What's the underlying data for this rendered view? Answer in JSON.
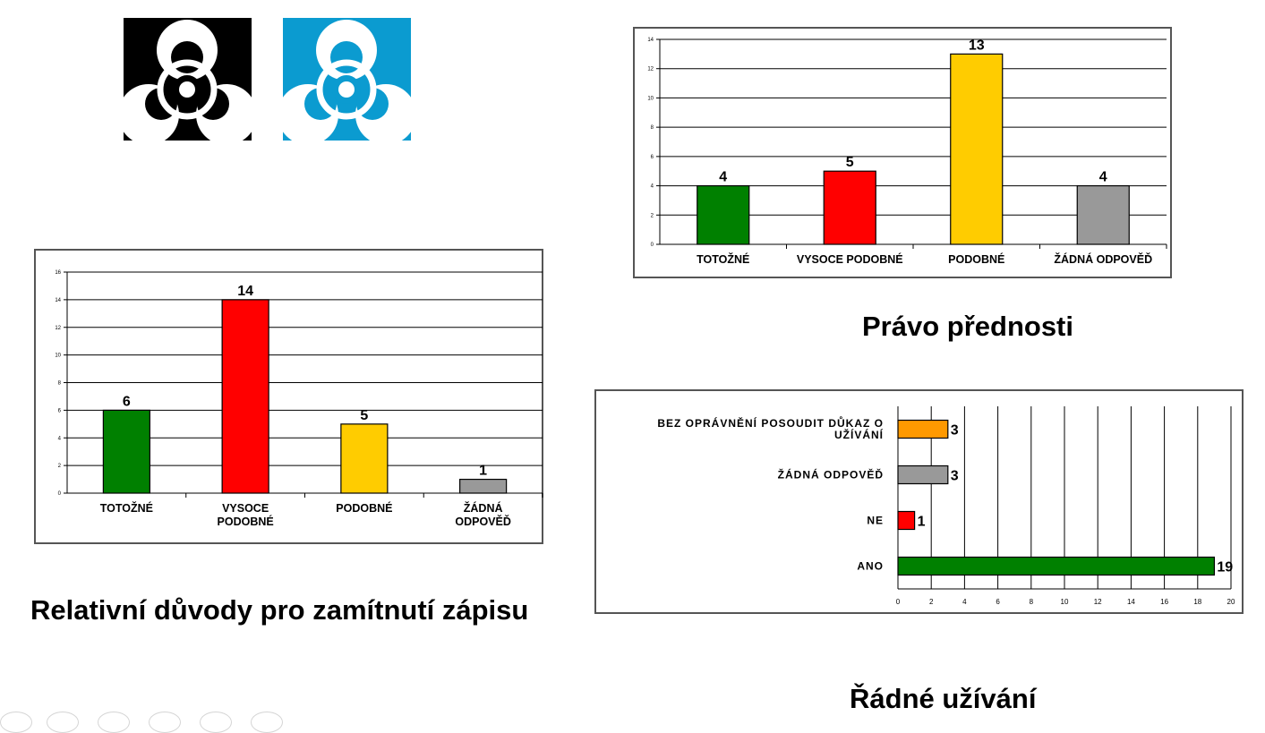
{
  "logos": [
    {
      "name": "biohazard-black",
      "fg": "#ffffff",
      "bg": "#000000"
    },
    {
      "name": "biohazard-blue",
      "fg": "#ffffff",
      "bg": "#0b9bd0"
    }
  ],
  "captions": {
    "pravo": "Právo přednosti",
    "relativni": "Relativní důvody pro zamítnutí zápisu",
    "radne": "Řádné užívání"
  },
  "chart_data": [
    {
      "id": "pravo",
      "type": "bar",
      "categories": [
        "TOTOŽNÉ",
        "VYSOCE PODOBNÉ",
        "PODOBNÉ",
        "ŽÁDNÁ ODPOVĚĎ"
      ],
      "values": [
        4,
        5,
        13,
        4
      ],
      "colors": [
        "#008000",
        "#ff0000",
        "#ffcc00",
        "#999999"
      ],
      "ylim": [
        0,
        14
      ],
      "yticks": [
        0,
        2,
        4,
        6,
        8,
        10,
        12,
        14
      ],
      "grid": true
    },
    {
      "id": "relativni",
      "type": "bar",
      "categories": [
        [
          "TOTOŽNÉ"
        ],
        [
          "VYSOCE",
          "PODOBNÉ"
        ],
        [
          "PODOBNÉ"
        ],
        [
          "ŽÁDNÁ",
          "ODPOVĚĎ"
        ]
      ],
      "values": [
        6,
        14,
        5,
        1
      ],
      "colors": [
        "#008000",
        "#ff0000",
        "#ffcc00",
        "#999999"
      ],
      "ylim": [
        0,
        16
      ],
      "yticks": [
        0,
        2,
        4,
        6,
        8,
        10,
        12,
        14,
        16
      ],
      "grid": true
    },
    {
      "id": "radne",
      "type": "bar",
      "orientation": "horizontal",
      "categories": [
        [
          "BEZ OPRÁVNĚNÍ POSOUDIT DŮKAZ O",
          "UŽÍVÁNÍ"
        ],
        [
          "ŽÁDNÁ ODPOVĚĎ"
        ],
        [
          "NE"
        ],
        [
          "ANO"
        ]
      ],
      "values": [
        3,
        3,
        1,
        19
      ],
      "colors": [
        "#ff9900",
        "#999999",
        "#ff0000",
        "#008000"
      ],
      "xlim": [
        0,
        20
      ],
      "xticks": [
        0,
        2,
        4,
        6,
        8,
        10,
        12,
        14,
        16,
        18,
        20
      ],
      "grid": true
    }
  ]
}
